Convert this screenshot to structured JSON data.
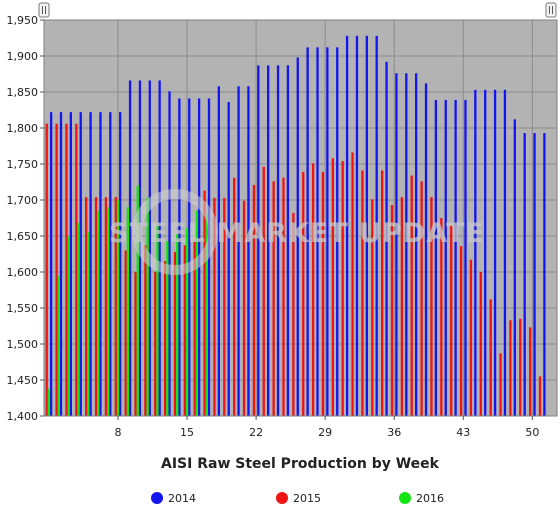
{
  "chart_data": {
    "type": "bar",
    "title": "AISI Raw Steel Production by Week",
    "xlabel": "",
    "ylabel": "",
    "xlim": [
      0.5,
      52.5
    ],
    "ylim": [
      1400,
      1950
    ],
    "x_ticks": [
      8,
      15,
      22,
      29,
      36,
      43,
      50
    ],
    "y_ticks": [
      1400,
      1450,
      1500,
      1550,
      1600,
      1650,
      1700,
      1750,
      1800,
      1850,
      1900,
      1950
    ],
    "y_tick_labels": [
      "1,400",
      "1,450",
      "1,500",
      "1,550",
      "1,600",
      "1,650",
      "1,700",
      "1,750",
      "1,800",
      "1,850",
      "1,900",
      "1,950"
    ],
    "grid": true,
    "legend_position": "bottom",
    "series": [
      {
        "name": "2014",
        "color": "#1414f0",
        "values": [
          1822,
          1822,
          1822,
          1822,
          1822,
          1822,
          1822,
          1822,
          1866,
          1866,
          1866,
          1866,
          1851,
          1841,
          1841,
          1841,
          1841,
          1858,
          1836,
          1858,
          1858,
          1887,
          1887,
          1887,
          1887,
          1898,
          1912,
          1912,
          1912,
          1912,
          1928,
          1928,
          1928,
          1928,
          1892,
          1876,
          1876,
          1876,
          1862,
          1839,
          1839,
          1839,
          1839,
          1853,
          1853,
          1853,
          1853,
          1812,
          1793,
          1793,
          1793
        ]
      },
      {
        "name": "2015",
        "color": "#f01414",
        "values": [
          1806,
          1806,
          1806,
          1806,
          1704,
          1704,
          1704,
          1704,
          1630,
          1600,
          1637,
          1600,
          1615,
          1628,
          1637,
          1643,
          1713,
          1703,
          1703,
          1731,
          1699,
          1721,
          1746,
          1726,
          1731,
          1682,
          1739,
          1751,
          1739,
          1758,
          1754,
          1766,
          1741,
          1701,
          1741,
          1693,
          1704,
          1734,
          1726,
          1704,
          1675,
          1665,
          1636,
          1617,
          1600,
          1562,
          1487,
          1533,
          1535,
          1523,
          1455
        ]
      },
      {
        "name": "2016",
        "color": "#14e614",
        "values": [
          1438,
          1595,
          1650,
          1668,
          1656,
          1685,
          1690,
          1700,
          1690,
          1720,
          1703,
          1665,
          1643,
          1652,
          1661,
          1685,
          1680
        ]
      }
    ],
    "watermark": "STEEL MARKET UPDATE"
  }
}
